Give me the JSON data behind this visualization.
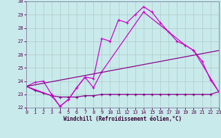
{
  "xlabel": "Windchill (Refroidissement éolien,°C)",
  "bg_color": "#c8eaea",
  "grid_color": "#b0c8c8",
  "line_color1": "#cc00cc",
  "line_color2": "#880088",
  "xmin": 0,
  "xmax": 23,
  "ymin": 22,
  "ymax": 30,
  "series1_x": [
    0,
    1,
    2,
    3,
    4,
    5,
    6,
    7,
    8,
    9,
    10,
    11,
    12,
    13,
    14,
    15,
    16,
    17,
    18,
    19,
    20,
    21,
    22,
    23
  ],
  "series1_y": [
    23.6,
    23.9,
    24.0,
    23.0,
    22.1,
    22.6,
    23.5,
    24.3,
    24.2,
    27.2,
    27.0,
    28.6,
    28.4,
    29.0,
    29.6,
    29.2,
    28.4,
    27.7,
    27.0,
    26.7,
    26.3,
    25.5,
    24.1,
    23.2
  ],
  "series2_x": [
    0,
    1,
    2,
    3,
    4,
    5,
    6,
    7,
    8,
    9,
    10,
    11,
    12,
    13,
    14,
    15,
    16,
    17,
    18,
    19,
    20,
    21,
    22,
    23
  ],
  "series2_y": [
    23.6,
    23.3,
    23.1,
    22.9,
    22.8,
    22.8,
    22.8,
    22.9,
    22.9,
    23.0,
    23.0,
    23.0,
    23.0,
    23.0,
    23.0,
    23.0,
    23.0,
    23.0,
    23.0,
    23.0,
    23.0,
    23.0,
    23.0,
    23.2
  ],
  "series3_x": [
    0,
    3,
    4,
    5,
    6,
    7,
    8,
    9,
    14,
    19,
    20,
    23
  ],
  "series3_y": [
    23.6,
    22.9,
    22.1,
    22.6,
    23.5,
    24.3,
    23.5,
    24.7,
    29.2,
    26.7,
    26.3,
    23.2
  ],
  "series4_x": [
    0,
    23
  ],
  "series4_y": [
    23.6,
    26.3
  ],
  "xticks": [
    0,
    1,
    2,
    3,
    4,
    5,
    6,
    7,
    8,
    9,
    10,
    11,
    12,
    13,
    14,
    15,
    16,
    17,
    18,
    19,
    20,
    21,
    22,
    23
  ],
  "yticks": [
    22,
    23,
    24,
    25,
    26,
    27,
    28,
    29,
    30
  ],
  "xlabel_fontsize": 5.5,
  "tick_fontsize": 5.0
}
